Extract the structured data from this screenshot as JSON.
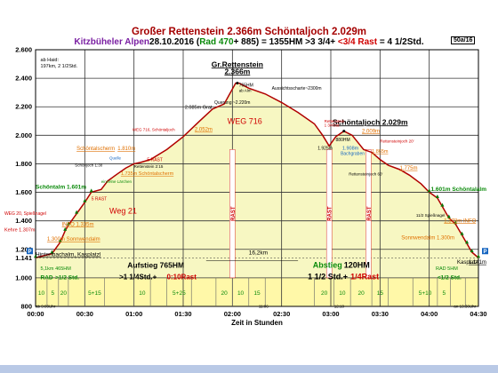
{
  "header": {
    "title": "Großer Rettenstein 2.366m Schöntaljoch 2.029m",
    "subtitle_parts": [
      {
        "text": "Kitzbüheler Alpen",
        "color": "#7a1fa2"
      },
      {
        "text": "28.10.2016 (",
        "color": "#000000"
      },
      {
        "text": "Rad 470",
        "color": "#0a8a0a"
      },
      {
        "text": "+ 885) = 1355HM >3 3/4+ ",
        "color": "#000000"
      },
      {
        "text": "<3/4 Rast",
        "color": "#d00000"
      },
      {
        "text": " = 4 1/2Std.",
        "color": "#000000"
      }
    ],
    "page_id": "50a/16"
  },
  "chart_data": {
    "type": "area",
    "xlabel": "Zeit in Stunden",
    "ylabel": "",
    "x_unit": "minutes",
    "xlim": [
      0,
      270
    ],
    "ylim": [
      800,
      2600
    ],
    "x_ticks": [
      {
        "v": 0,
        "label": "00:00"
      },
      {
        "v": 30,
        "label": "00:30"
      },
      {
        "v": 60,
        "label": "01:00"
      },
      {
        "v": 90,
        "label": "01:30"
      },
      {
        "v": 120,
        "label": "02:00"
      },
      {
        "v": 150,
        "label": "02:30"
      },
      {
        "v": 180,
        "label": "03:00"
      },
      {
        "v": 210,
        "label": "03:30"
      },
      {
        "v": 240,
        "label": "04:00"
      },
      {
        "v": 270,
        "label": "04:30"
      }
    ],
    "y_ticks": [
      {
        "v": 800,
        "label": "800"
      },
      {
        "v": 1000,
        "label": "1.000"
      },
      {
        "v": 1141,
        "label": "1.141"
      },
      {
        "v": 1200,
        "label": "1.200"
      },
      {
        "v": 1400,
        "label": "1.400"
      },
      {
        "v": 1600,
        "label": "1.600"
      },
      {
        "v": 1800,
        "label": "1.800"
      },
      {
        "v": 2000,
        "label": "2.000"
      },
      {
        "v": 2200,
        "label": "2.200"
      },
      {
        "v": 2400,
        "label": "2.400"
      },
      {
        "v": 2600,
        "label": "2.600"
      }
    ],
    "grid": true,
    "profile": [
      [
        0,
        1141
      ],
      [
        10,
        1170
      ],
      [
        15,
        1250
      ],
      [
        18,
        1330
      ],
      [
        20,
        1370
      ],
      [
        25,
        1450
      ],
      [
        30,
        1530
      ],
      [
        34,
        1601
      ],
      [
        40,
        1620
      ],
      [
        44,
        1680
      ],
      [
        50,
        1730
      ],
      [
        55,
        1770
      ],
      [
        60,
        1800
      ],
      [
        64,
        1810
      ],
      [
        70,
        1830
      ],
      [
        80,
        1900
      ],
      [
        90,
        1990
      ],
      [
        100,
        2100
      ],
      [
        108,
        2185
      ],
      [
        115,
        2220
      ],
      [
        122,
        2366
      ],
      [
        124,
        2366
      ],
      [
        130,
        2330
      ],
      [
        140,
        2290
      ],
      [
        150,
        2230
      ],
      [
        160,
        2160
      ],
      [
        170,
        2080
      ],
      [
        175,
        2000
      ],
      [
        179,
        1925
      ],
      [
        183,
        1990
      ],
      [
        188,
        2029
      ],
      [
        193,
        2000
      ],
      [
        200,
        1900
      ],
      [
        205,
        1880
      ],
      [
        210,
        1830
      ],
      [
        215,
        1790
      ],
      [
        222,
        1760
      ],
      [
        228,
        1720
      ],
      [
        235,
        1660
      ],
      [
        240,
        1601
      ],
      [
        245,
        1560
      ],
      [
        248,
        1500
      ],
      [
        252,
        1420
      ],
      [
        256,
        1378
      ],
      [
        260,
        1300
      ],
      [
        263,
        1240
      ],
      [
        266,
        1180
      ],
      [
        270,
        1141
      ]
    ],
    "peaks": [
      {
        "name": "Gr.Rettenstein",
        "value": "2.366m",
        "x": 123,
        "y": 2366
      },
      {
        "name": "Schöntaljoch",
        "value": "2.029m",
        "x": 188,
        "y": 2029
      }
    ],
    "bottom_segments": [
      {
        "from": 0,
        "to": 7,
        "label": "10"
      },
      {
        "from": 7,
        "to": 14,
        "label": "5"
      },
      {
        "from": 14,
        "to": 20,
        "label": "20"
      },
      {
        "from": 20,
        "to": 30,
        "label": ""
      },
      {
        "from": 30,
        "to": 42,
        "label": "5+15"
      },
      {
        "from": 42,
        "to": 60,
        "label": ""
      },
      {
        "from": 60,
        "to": 70,
        "label": "10"
      },
      {
        "from": 70,
        "to": 80,
        "label": ""
      },
      {
        "from": 80,
        "to": 95,
        "label": "5+25"
      },
      {
        "from": 95,
        "to": 110,
        "label": ""
      },
      {
        "from": 110,
        "to": 120,
        "label": "20"
      },
      {
        "from": 120,
        "to": 130,
        "label": "10"
      },
      {
        "from": 130,
        "to": 140,
        "label": "15"
      },
      {
        "from": 140,
        "to": 170,
        "label": ""
      },
      {
        "from": 170,
        "to": 182,
        "label": "20"
      },
      {
        "from": 182,
        "to": 192,
        "label": "10"
      },
      {
        "from": 192,
        "to": 205,
        "label": "20"
      },
      {
        "from": 205,
        "to": 215,
        "label": "15"
      },
      {
        "from": 215,
        "to": 230,
        "label": ""
      },
      {
        "from": 230,
        "to": 245,
        "label": "5+10"
      },
      {
        "from": 245,
        "to": 253,
        "label": "5"
      },
      {
        "from": 253,
        "to": 262,
        "label": ""
      }
    ],
    "rast_markers": [
      {
        "x": 120,
        "label": "RAST"
      },
      {
        "x": 179,
        "label": "RAST"
      },
      {
        "x": 203,
        "label": "RAST"
      }
    ],
    "labels": [
      {
        "t": "ab Haid:",
        "x": 3,
        "y": 2520,
        "c": "#000000",
        "s": 5.5
      },
      {
        "t": "197km, 2 1/2Std.",
        "x": 3,
        "y": 2475,
        "c": "#000000",
        "s": 5.5
      },
      {
        "t": "Schöntalm 1.601m",
        "x": 0,
        "y": 1625,
        "c": "#0a8a0a",
        "s": 6.5,
        "b": true
      },
      {
        "t": "WEG 20, Spießnagel",
        "x": -19,
        "y": 1440,
        "c": "#d00000",
        "s": 5
      },
      {
        "t": "Kehre 1.307m",
        "x": -19,
        "y": 1325,
        "c": "#d00000",
        "s": 5.5
      },
      {
        "t": "INFO 1.335m",
        "x": 16,
        "y": 1365,
        "c": "#e07000",
        "s": 6,
        "u": true
      },
      {
        "t": "1.300m Sonnwendalm",
        "x": 7,
        "y": 1260,
        "c": "#e07000",
        "s": 6,
        "u": true
      },
      {
        "t": "Hintenbachalm, Kasplatzl",
        "x": 0,
        "y": 1152,
        "c": "#000000",
        "s": 6.5,
        "u": true
      },
      {
        "t": "5,1km",
        "x": 3,
        "y": 1055,
        "c": "#0a8a0a",
        "s": 5.5
      },
      {
        "t": "465HM",
        "x": 12,
        "y": 1055,
        "c": "#0a8a0a",
        "s": 5.5
      },
      {
        "t": "RAD",
        "x": 3,
        "y": 990,
        "c": "#0a8a0a",
        "s": 6.5,
        "b": true
      },
      {
        "t": ">1/2 Std.",
        "x": 12,
        "y": 990,
        "c": "#0a8a0a",
        "s": 6.5,
        "b": true
      },
      {
        "t": "Aufstieg 765HM",
        "x": 56,
        "y": 1070,
        "c": "#000000",
        "s": 8.5,
        "b": true
      },
      {
        "t": ">1 1/4Std.+",
        "x": 51,
        "y": 990,
        "c": "#000000",
        "s": 8,
        "b": true
      },
      {
        "t": "0:10Rast",
        "x": 80,
        "y": 990,
        "c": "#d00000",
        "s": 8,
        "b": true
      },
      {
        "t": "Weg 21",
        "x": 45,
        "y": 1450,
        "c": "#d00000",
        "s": 9
      },
      {
        "t": "5 RAST",
        "x": 34,
        "y": 1545,
        "c": "#d00000",
        "s": 5
      },
      {
        "t": "Schöntalscherm",
        "x": 25,
        "y": 1895,
        "c": "#e07000",
        "s": 6,
        "u": true
      },
      {
        "t": "1.810m",
        "x": 50,
        "y": 1895,
        "c": "#e07000",
        "s": 6,
        "u": true
      },
      {
        "t": "Schönjoch 1:30",
        "x": 24,
        "y": 1782,
        "c": "#000000",
        "s": 4.5
      },
      {
        "t": "Quelle",
        "x": 45,
        "y": 1830,
        "c": "#1565c0",
        "s": 4.5
      },
      {
        "t": "5 RAST",
        "x": 68,
        "y": 1818,
        "c": "#d00000",
        "s": 5
      },
      {
        "t": "Rettenstein 2:15",
        "x": 60,
        "y": 1772,
        "c": "#000000",
        "s": 4.5
      },
      {
        "t": "1.735m Schöntalscherm",
        "x": 52,
        "y": 1722,
        "c": "#e07000",
        "s": 5.5,
        "u": true
      },
      {
        "t": "einzelne Lärchen",
        "x": 40,
        "y": 1665,
        "c": "#0a8a0a",
        "s": 4.5
      },
      {
        "t": "WEG 716, Schöntaljoch",
        "x": 59,
        "y": 2030,
        "c": "#d00000",
        "s": 4.5
      },
      {
        "t": "2.085m Grat",
        "x": 91,
        "y": 2185,
        "c": "#000000",
        "s": 5.5
      },
      {
        "t": "2.052m",
        "x": 97,
        "y": 2030,
        "c": "#e07000",
        "s": 6,
        "u": true
      },
      {
        "t": "Querung ~2.220m",
        "x": 109,
        "y": 2220,
        "c": "#000000",
        "s": 5
      },
      {
        "t": "WEG 716",
        "x": 117,
        "y": 2080,
        "c": "#d00000",
        "s": 9
      },
      {
        "t": "765HM",
        "x": 124,
        "y": 2340,
        "c": "#000000",
        "s": 5
      },
      {
        "t": "ab Alm",
        "x": 124,
        "y": 2305,
        "c": "#000000",
        "s": 4.5
      },
      {
        "t": "Aussichtsscharte~2300m",
        "x": 144,
        "y": 2320,
        "c": "#000000",
        "s": 5
      },
      {
        "t": "16,2km",
        "x": 130,
        "y": 1165,
        "c": "#000000",
        "s": 6.5
      },
      {
        "t": "Rettenstein",
        "x": 176,
        "y": 2090,
        "c": "#d00000",
        "s": 4.5
      },
      {
        "t": "1 3/4Std.",
        "x": 176,
        "y": 2060,
        "c": "#d00000",
        "s": 4.5
      },
      {
        "t": "880HM",
        "x": 183,
        "y": 1960,
        "c": "#000000",
        "s": 5
      },
      {
        "t": "1.925m",
        "x": 172,
        "y": 1900,
        "c": "#000000",
        "s": 5
      },
      {
        "t": "1.908m",
        "x": 187,
        "y": 1900,
        "c": "#1565c0",
        "s": 5.5
      },
      {
        "t": "Bachgraben",
        "x": 186,
        "y": 1862,
        "c": "#1565c0",
        "s": 5
      },
      {
        "t": "2.009m",
        "x": 199,
        "y": 2018,
        "c": "#e07000",
        "s": 6,
        "u": true
      },
      {
        "t": "Rettensteinjoch 20'",
        "x": 210,
        "y": 1948,
        "c": "#d00000",
        "s": 4.5
      },
      {
        "t": "1.865m",
        "x": 205,
        "y": 1878,
        "c": "#e07000",
        "s": 5.5,
        "u": true
      },
      {
        "t": "Rettensteinjoch 60'",
        "x": 191,
        "y": 1720,
        "c": "#000000",
        "s": 4.5
      },
      {
        "t": "1.775m",
        "x": 222,
        "y": 1760,
        "c": "#e07000",
        "s": 6,
        "u": true
      },
      {
        "t": "1.601m Schöntalalm",
        "x": 241,
        "y": 1610,
        "c": "#0a8a0a",
        "s": 6.5,
        "b": true
      },
      {
        "t": "11/2 Spießnagel",
        "x": 232,
        "y": 1430,
        "c": "#000000",
        "s": 4.5
      },
      {
        "t": "1.378m INFO",
        "x": 249,
        "y": 1390,
        "c": "#e07000",
        "s": 6,
        "u": true
      },
      {
        "t": "Sonnwendalm 1.300m",
        "x": 223,
        "y": 1270,
        "c": "#e07000",
        "s": 6
      },
      {
        "t": "Kasplatzl",
        "x": 257,
        "y": 1100,
        "c": "#000000",
        "s": 6
      },
      {
        "t": "1.141m",
        "x": 264,
        "y": 1100,
        "c": "#000000",
        "s": 6,
        "u": true
      },
      {
        "t": "Abstieg",
        "x": 169,
        "y": 1070,
        "c": "#0a8a0a",
        "s": 9,
        "b": true
      },
      {
        "t": "120HM",
        "x": 188,
        "y": 1070,
        "c": "#000000",
        "s": 9,
        "b": true
      },
      {
        "t": "1 1/2 Std.+ ",
        "x": 166,
        "y": 990,
        "c": "#000000",
        "s": 9,
        "b": true
      },
      {
        "t": "1/4Rast",
        "x": 192,
        "y": 990,
        "c": "#d00000",
        "s": 9,
        "b": true
      },
      {
        "t": "RAD 5HM",
        "x": 244,
        "y": 1055,
        "c": "#0a8a0a",
        "s": 5.5
      },
      {
        "t": "<1/2 Std.",
        "x": 245,
        "y": 990,
        "c": "#0a8a0a",
        "s": 6.5,
        "b": true
      },
      {
        "t": "ab 9:00Uhr",
        "x": 0,
        "y": 790,
        "c": "#000000",
        "s": 4.5
      },
      {
        "t": "11:06",
        "x": 136,
        "y": 790,
        "c": "#000000",
        "s": 4.5
      },
      {
        "t": "12:10",
        "x": 182,
        "y": 790,
        "c": "#000000",
        "s": 4.5
      },
      {
        "t": "an 13:30Uhr",
        "x": 255,
        "y": 790,
        "c": "#000000",
        "s": 4.5
      }
    ],
    "parking": [
      {
        "label": "P",
        "x": 0,
        "y": 1141
      },
      {
        "label": "P",
        "x": 270,
        "y": 1141
      }
    ],
    "peak_labels": [
      {
        "label": "Gr.Rettenstein",
        "x": 123,
        "y": 2480
      },
      {
        "label": "2.366m",
        "x": 123,
        "y": 2430
      },
      {
        "label": "Schöntaljoch 2.029m",
        "x": 204,
        "y": 2075
      }
    ],
    "colors": {
      "fill": "#f7f7c2",
      "bottom_band": "#fff8a8",
      "profile_line": "#b00000",
      "grid": "#222222",
      "rast": "#ffffff"
    }
  }
}
